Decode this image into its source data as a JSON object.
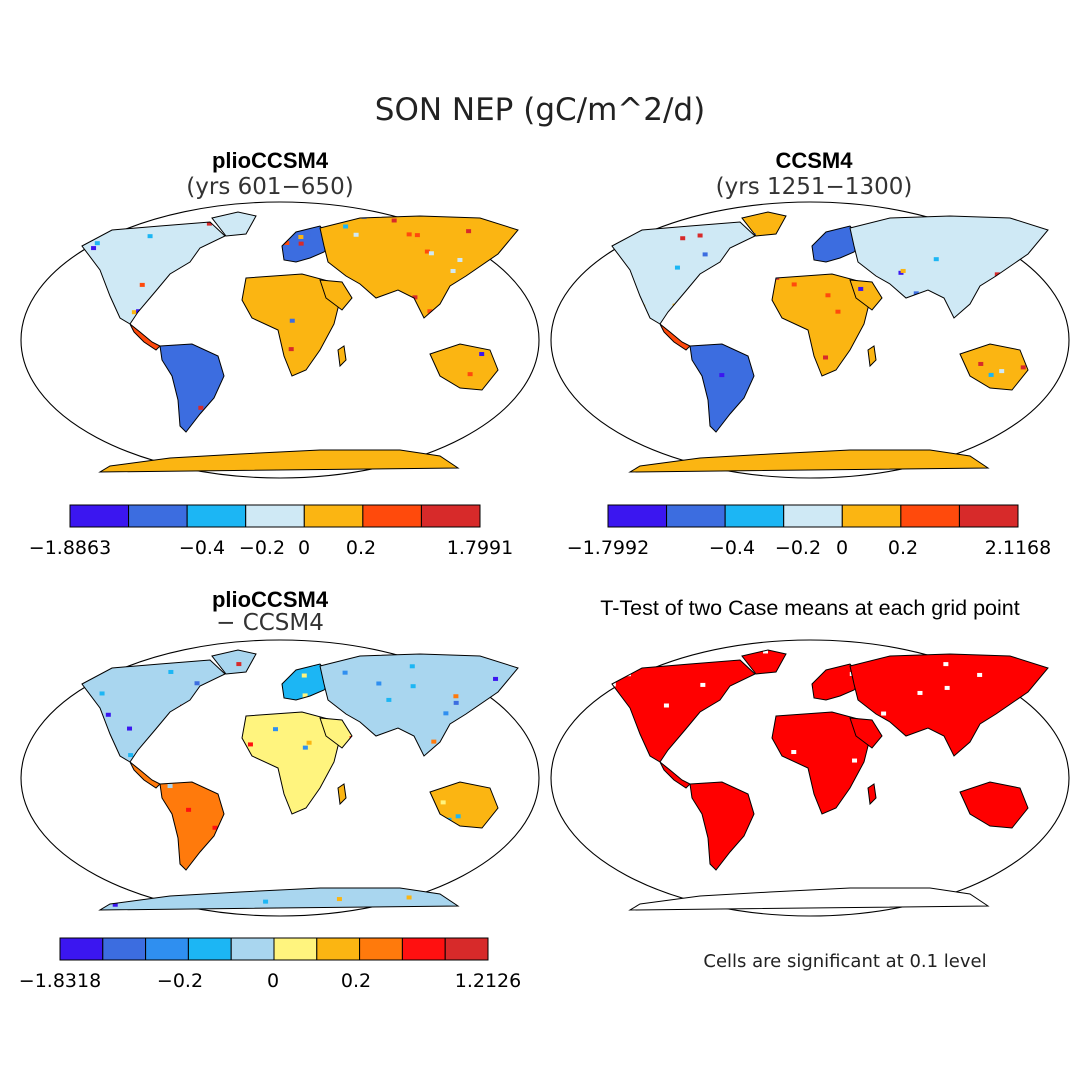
{
  "figure": {
    "title": "SON NEP (gC/m^2/d)",
    "note": "Cells are significant at 0.1 level"
  },
  "panels": {
    "top_left": {
      "title": "plioCCSM4",
      "subtitle": "(yrs 601−650)"
    },
    "top_right": {
      "title": "CCSM4",
      "subtitle": "(yrs 1251−1300)"
    },
    "bottom_left": {
      "title": "plioCCSM4",
      "subtitle": "− CCSM4"
    },
    "bottom_right": {
      "title": "T-Test of two Case means at each grid point"
    }
  },
  "colorbars": {
    "top_left": {
      "colors": [
        "#3b16f0",
        "#3c6de0",
        "#1cb6f4",
        "#cfe9f5",
        "#fbb512",
        "#ff4a0c",
        "#d72a2a"
      ],
      "labels": [
        "−1.8863",
        "−0.4",
        "−0.2",
        "0",
        "0.2",
        "1.7991"
      ]
    },
    "top_right": {
      "colors": [
        "#3b16f0",
        "#3c6de0",
        "#1cb6f4",
        "#cfe9f5",
        "#fbb512",
        "#ff4a0c",
        "#d72a2a"
      ],
      "labels": [
        "−1.7992",
        "−0.4",
        "−0.2",
        "0",
        "0.2",
        "2.1168"
      ]
    },
    "bottom_left": {
      "colors": [
        "#3b16f0",
        "#3c6de0",
        "#2f8ff0",
        "#1cb6f4",
        "#a9d6ef",
        "#fff47e",
        "#fbb512",
        "#ff7a0c",
        "#ff1010",
        "#d72a2a"
      ],
      "labels": [
        "−1.8318",
        "−0.2",
        "0",
        "0.2",
        "1.2126"
      ]
    }
  },
  "colors": {
    "land_outline": "#000000",
    "significant": "#ff0000",
    "antarctica_positive": "#fbb512",
    "antarctica_diff": "#fff47e"
  }
}
